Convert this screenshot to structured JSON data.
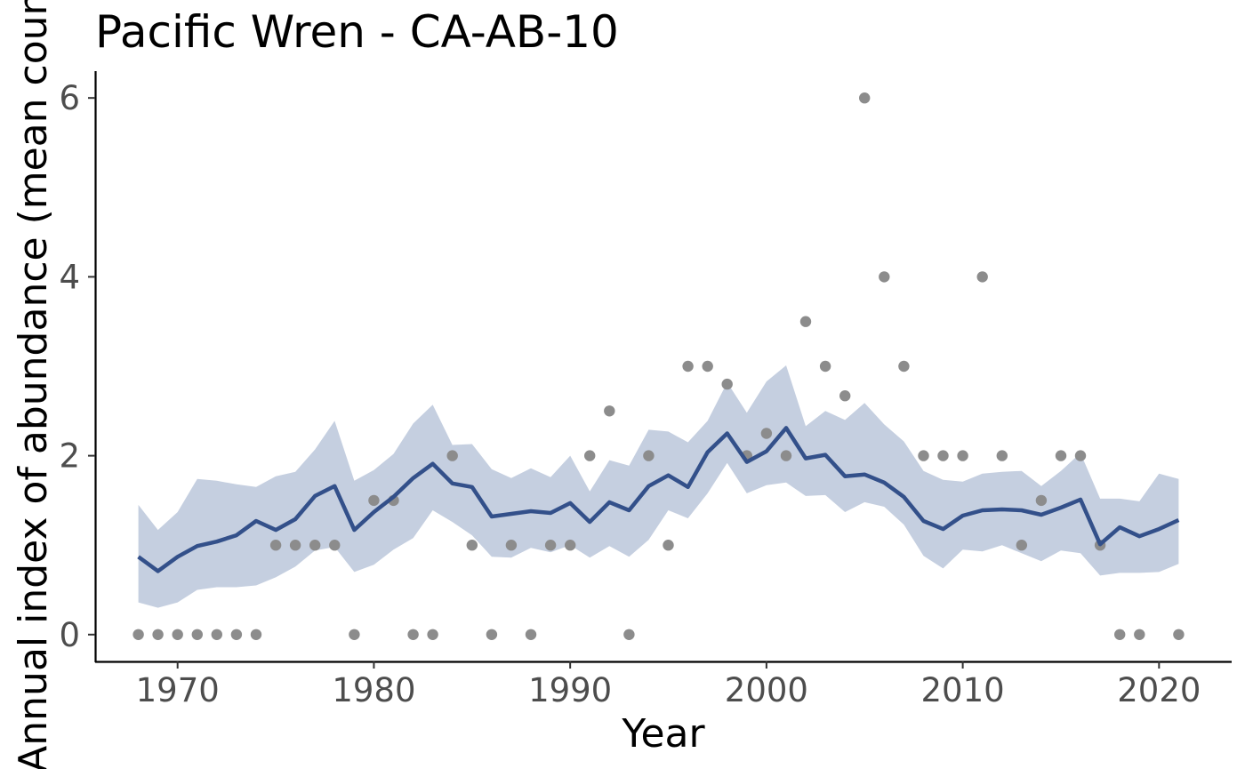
{
  "chart_data": {
    "type": "line",
    "title": "Pacific Wren - CA-AB-10",
    "xlabel": "Year",
    "ylabel": "Annual index of abundance (mean count)",
    "xlim": [
      1965.8,
      2023.7
    ],
    "ylim": [
      -0.3,
      6.3
    ],
    "x_ticks": [
      1970,
      1980,
      1990,
      2000,
      2010,
      2020
    ],
    "y_ticks": [
      0,
      2,
      4,
      6
    ],
    "grid": false,
    "legend": "none",
    "colors": {
      "line": "#33508a",
      "ribbon": "#c5cfe0",
      "points": "#8c8c8c",
      "axis": "#000000",
      "tick_labels": "#4d4d4d"
    },
    "series": [
      {
        "type": "ribbon",
        "x": [
          1968,
          1969,
          1970,
          1971,
          1972,
          1973,
          1974,
          1975,
          1976,
          1977,
          1978,
          1979,
          1980,
          1981,
          1982,
          1983,
          1984,
          1985,
          1986,
          1987,
          1988,
          1989,
          1990,
          1991,
          1992,
          1993,
          1994,
          1995,
          1996,
          1997,
          1998,
          1999,
          2000,
          2001,
          2002,
          2003,
          2004,
          2005,
          2006,
          2007,
          2008,
          2009,
          2010,
          2011,
          2012,
          2013,
          2014,
          2015,
          2016,
          2017,
          2018,
          2019,
          2020,
          2021
        ],
        "lower": [
          0.36,
          0.3,
          0.36,
          0.5,
          0.53,
          0.53,
          0.55,
          0.64,
          0.76,
          0.94,
          0.98,
          0.7,
          0.78,
          0.95,
          1.08,
          1.39,
          1.26,
          1.11,
          0.87,
          0.86,
          0.97,
          0.92,
          1.0,
          0.86,
          0.99,
          0.87,
          1.06,
          1.39,
          1.3,
          1.58,
          1.92,
          1.58,
          1.67,
          1.7,
          1.55,
          1.56,
          1.37,
          1.48,
          1.43,
          1.23,
          0.88,
          0.74,
          0.95,
          0.93,
          1.0,
          0.91,
          0.82,
          0.94,
          0.91,
          0.66,
          0.69,
          0.69,
          0.7,
          0.79
        ],
        "upper": [
          1.45,
          1.17,
          1.37,
          1.74,
          1.72,
          1.68,
          1.65,
          1.77,
          1.82,
          2.07,
          2.39,
          1.72,
          1.84,
          2.02,
          2.36,
          2.57,
          2.12,
          2.13,
          1.85,
          1.75,
          1.86,
          1.76,
          2.0,
          1.6,
          1.95,
          1.89,
          2.29,
          2.27,
          2.15,
          2.39,
          2.82,
          2.48,
          2.83,
          3.01,
          2.33,
          2.5,
          2.4,
          2.59,
          2.35,
          2.16,
          1.83,
          1.73,
          1.71,
          1.8,
          1.82,
          1.83,
          1.66,
          1.83,
          2.03,
          1.52,
          1.52,
          1.49,
          1.8,
          1.74
        ]
      },
      {
        "type": "line",
        "x": [
          1968,
          1969,
          1970,
          1971,
          1972,
          1973,
          1974,
          1975,
          1976,
          1977,
          1978,
          1979,
          1980,
          1981,
          1982,
          1983,
          1984,
          1985,
          1986,
          1987,
          1988,
          1989,
          1990,
          1991,
          1992,
          1993,
          1994,
          1995,
          1996,
          1997,
          1998,
          1999,
          2000,
          2001,
          2002,
          2003,
          2004,
          2005,
          2006,
          2007,
          2008,
          2009,
          2010,
          2011,
          2012,
          2013,
          2014,
          2015,
          2016,
          2017,
          2018,
          2019,
          2020,
          2021
        ],
        "y": [
          0.87,
          0.71,
          0.87,
          0.99,
          1.04,
          1.11,
          1.27,
          1.17,
          1.29,
          1.55,
          1.66,
          1.17,
          1.37,
          1.54,
          1.75,
          1.91,
          1.69,
          1.65,
          1.32,
          1.35,
          1.38,
          1.36,
          1.47,
          1.26,
          1.48,
          1.39,
          1.66,
          1.78,
          1.65,
          2.04,
          2.25,
          1.93,
          2.05,
          2.31,
          1.97,
          2.01,
          1.77,
          1.79,
          1.7,
          1.54,
          1.27,
          1.18,
          1.33,
          1.39,
          1.4,
          1.39,
          1.34,
          1.42,
          1.51,
          1.01,
          1.2,
          1.1,
          1.18,
          1.28
        ]
      },
      {
        "type": "scatter",
        "x": [
          1968,
          1969,
          1970,
          1971,
          1972,
          1973,
          1974,
          1975,
          1976,
          1977,
          1978,
          1979,
          1980,
          1981,
          1982,
          1983,
          1984,
          1985,
          1986,
          1987,
          1988,
          1989,
          1990,
          1991,
          1992,
          1993,
          1994,
          1995,
          1996,
          1997,
          1998,
          1999,
          2000,
          2001,
          2002,
          2003,
          2004,
          2005,
          2006,
          2007,
          2008,
          2009,
          2010,
          2011,
          2012,
          2013,
          2014,
          2015,
          2016,
          2017,
          2018,
          2019,
          2021
        ],
        "y": [
          0,
          0,
          0,
          0,
          0,
          0,
          0,
          1,
          1,
          1,
          1,
          0,
          1.5,
          1.5,
          0,
          0,
          2,
          1,
          0,
          1,
          0,
          1,
          1,
          2,
          2.5,
          0,
          2,
          1,
          3,
          3,
          2.8,
          2,
          2.25,
          2,
          3.5,
          3,
          2.67,
          6,
          4,
          3,
          2,
          2,
          2,
          4,
          2,
          1,
          1.5,
          2,
          2,
          1,
          0,
          0,
          0
        ]
      }
    ]
  }
}
